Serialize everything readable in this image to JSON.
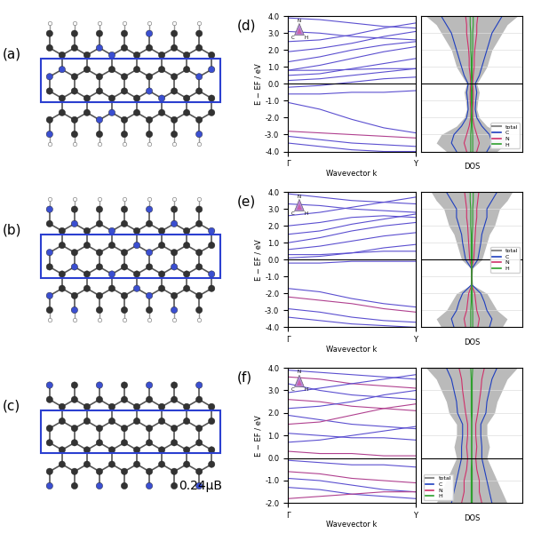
{
  "structures": [
    {
      "label": "(a)"
    },
    {
      "label": "(b)"
    },
    {
      "label": "(c)",
      "annotation": "0.24μB"
    }
  ],
  "chart_data": [
    {
      "type": "line",
      "annotation": "(d)",
      "xlabel": "Wavevector k",
      "ylabel": "E − EF / eV",
      "triangle_labels": [
        "N",
        "C",
        "H"
      ],
      "fermi_level": 0,
      "x": [
        0,
        0.25,
        0.5,
        0.75,
        1.0
      ],
      "xlim": [
        0,
        1.0
      ],
      "xticks": [
        {
          "value": 0,
          "label": "Γ"
        },
        {
          "value": 1.0,
          "label": "Y"
        }
      ],
      "ylim": [
        -4,
        4
      ],
      "yticks": [
        {
          "value": -4,
          "label": "-4.0"
        },
        {
          "value": -3,
          "label": "-3.0"
        },
        {
          "value": -2,
          "label": "-2.0"
        },
        {
          "value": -1,
          "label": "-1.0"
        },
        {
          "value": 0,
          "label": "0.0"
        },
        {
          "value": 1,
          "label": "1.0"
        },
        {
          "value": 2,
          "label": "2.0"
        },
        {
          "value": 3,
          "label": "3.0"
        },
        {
          "value": 4,
          "label": "4.0"
        }
      ],
      "series": [
        {
          "color": "#5b4fd0",
          "values": [
            3.9,
            3.8,
            3.6,
            3.4,
            3.3
          ]
        },
        {
          "color": "#5b4fd0",
          "values": [
            3.1,
            3.0,
            2.8,
            2.7,
            2.6
          ]
        },
        {
          "color": "#5b4fd0",
          "values": [
            2.5,
            2.6,
            2.9,
            3.3,
            3.6
          ]
        },
        {
          "color": "#5b4fd0",
          "values": [
            1.9,
            2.1,
            2.4,
            2.8,
            3.1
          ]
        },
        {
          "color": "#5b4fd0",
          "values": [
            1.3,
            1.6,
            2.0,
            2.3,
            2.5
          ]
        },
        {
          "color": "#5b4fd0",
          "values": [
            0.8,
            1.1,
            1.5,
            1.9,
            2.2
          ]
        },
        {
          "color": "#5b4fd0",
          "values": [
            0.8,
            0.8,
            0.85,
            0.9,
            0.9
          ]
        },
        {
          "color": "#5b4fd0",
          "values": [
            0.5,
            0.6,
            0.9,
            1.2,
            1.5
          ]
        },
        {
          "color": "#5b4fd0",
          "values": [
            0.2,
            0.3,
            0.5,
            0.7,
            0.9
          ]
        },
        {
          "color": "#5b4fd0",
          "values": [
            -0.2,
            -0.1,
            0.1,
            0.3,
            0.4
          ]
        },
        {
          "color": "#5b4fd0",
          "values": [
            -0.6,
            -0.6,
            -0.5,
            -0.5,
            -0.4
          ]
        },
        {
          "color": "#5b4fd0",
          "values": [
            -1.1,
            -1.5,
            -2.1,
            -2.6,
            -2.9
          ]
        },
        {
          "color": "#b0408f",
          "values": [
            -2.8,
            -2.9,
            -3.0,
            -3.1,
            -3.2
          ]
        },
        {
          "color": "#5b4fd0",
          "values": [
            -3.1,
            -3.3,
            -3.5,
            -3.6,
            -3.7
          ]
        },
        {
          "color": "#5b4fd0",
          "values": [
            -3.5,
            -3.7,
            -3.9,
            -4.0,
            -4.0
          ]
        }
      ]
    },
    {
      "type": "area",
      "xlabel": "DOS",
      "orientation": "horizontal",
      "tick_labels": false,
      "grid": true,
      "legend": "lower right",
      "fermi_level": 0,
      "x": [
        -4,
        -3.5,
        -3,
        -2.5,
        -2,
        -1.5,
        -1,
        -0.5,
        0,
        0.5,
        1,
        1.5,
        2,
        2.5,
        3,
        3.5,
        4
      ],
      "xlim": [
        -4,
        4
      ],
      "xticks": [
        -4,
        -3,
        -2,
        -1,
        0,
        1,
        2,
        3,
        4
      ],
      "ylim": [
        -1,
        1
      ],
      "series": [
        {
          "name": "total",
          "type": "area",
          "color": "#8c8c8c",
          "values": [
            0.5,
            0.7,
            0.6,
            0.3,
            0.15,
            0.1,
            0.12,
            0.15,
            0.1,
            0.2,
            0.3,
            0.35,
            0.4,
            0.5,
            0.6,
            0.7,
            0.9
          ]
        },
        {
          "name": "C",
          "type": "line",
          "color": "#1f3fbf",
          "values": [
            0.3,
            0.4,
            0.35,
            0.2,
            0.1,
            0.07,
            0.08,
            0.1,
            0.07,
            0.15,
            0.2,
            0.25,
            0.3,
            0.35,
            0.4,
            0.5,
            0.6
          ]
        },
        {
          "name": "N",
          "type": "line",
          "color": "#d0306a",
          "values": [
            0.1,
            0.15,
            0.1,
            0.05,
            0.02,
            0.02,
            0.03,
            0.03,
            0.02,
            0.03,
            0.05,
            0.05,
            0.06,
            0.08,
            0.1,
            0.1,
            0.12
          ]
        },
        {
          "name": "H",
          "type": "line",
          "color": "#2ca02c",
          "values": [
            0.02,
            0.02,
            0.02,
            0.01,
            0.01,
            0.0,
            0.01,
            0.01,
            0.0,
            0.01,
            0.01,
            0.01,
            0.02,
            0.02,
            0.02,
            0.03,
            0.03
          ]
        }
      ]
    },
    {
      "type": "line",
      "annotation": "(e)",
      "xlabel": "Wavevector k",
      "ylabel": "E − EF / eV",
      "triangle_labels": [
        "N",
        "C",
        "H"
      ],
      "fermi_level": 0,
      "x": [
        0,
        0.25,
        0.5,
        0.75,
        1.0
      ],
      "xlim": [
        0,
        1.0
      ],
      "xticks": [
        {
          "value": 0,
          "label": "Γ"
        },
        {
          "value": 1.0,
          "label": "Y"
        }
      ],
      "ylim": [
        -4,
        4
      ],
      "yticks": [
        {
          "value": -4,
          "label": "-4.0"
        },
        {
          "value": -3,
          "label": "-3.0"
        },
        {
          "value": -2,
          "label": "-2.0"
        },
        {
          "value": -1,
          "label": "-1.0"
        },
        {
          "value": 0,
          "label": "0.0"
        },
        {
          "value": 1,
          "label": "1.0"
        },
        {
          "value": 2,
          "label": "2.0"
        },
        {
          "value": 3,
          "label": "3.0"
        },
        {
          "value": 4,
          "label": "4.0"
        }
      ],
      "series": [
        {
          "color": "#5b4fd0",
          "values": [
            3.9,
            3.7,
            3.5,
            3.4,
            3.3
          ]
        },
        {
          "color": "#5b4fd0",
          "values": [
            3.3,
            3.2,
            3.0,
            2.9,
            2.8
          ]
        },
        {
          "color": "#5b4fd0",
          "values": [
            2.6,
            2.8,
            3.1,
            3.4,
            3.7
          ]
        },
        {
          "color": "#5b4fd0",
          "values": [
            2.0,
            2.2,
            2.5,
            2.6,
            2.5
          ]
        },
        {
          "color": "#5b4fd0",
          "values": [
            1.5,
            1.7,
            2.1,
            2.4,
            2.7
          ]
        },
        {
          "color": "#5b4fd0",
          "values": [
            1.0,
            1.3,
            1.7,
            2.0,
            2.2
          ]
        },
        {
          "color": "#5b4fd0",
          "values": [
            0.6,
            0.8,
            1.1,
            1.4,
            1.6
          ]
        },
        {
          "color": "#5b4fd0",
          "values": [
            0.3,
            0.3,
            0.4,
            0.5,
            0.5
          ]
        },
        {
          "color": "#5b4fd0",
          "values": [
            0.1,
            0.2,
            0.4,
            0.7,
            0.9
          ]
        },
        {
          "color": "#5b4fd0",
          "values": [
            -0.2,
            -0.2,
            -0.1,
            -0.1,
            -0.1
          ]
        },
        {
          "color": "#5b4fd0",
          "values": [
            -1.7,
            -1.9,
            -2.3,
            -2.6,
            -2.8
          ]
        },
        {
          "color": "#b0408f",
          "values": [
            -2.2,
            -2.4,
            -2.6,
            -2.9,
            -3.1
          ]
        },
        {
          "color": "#5b4fd0",
          "values": [
            -2.9,
            -3.1,
            -3.4,
            -3.6,
            -3.7
          ]
        },
        {
          "color": "#5b4fd0",
          "values": [
            -3.4,
            -3.6,
            -3.8,
            -3.9,
            -4.0
          ]
        }
      ]
    },
    {
      "type": "area",
      "xlabel": "DOS",
      "orientation": "horizontal",
      "tick_labels": false,
      "grid": true,
      "legend": "center right",
      "fermi_level": 0,
      "x": [
        -4,
        -3.5,
        -3,
        -2.5,
        -2,
        -1.5,
        -1,
        -0.5,
        0,
        0.5,
        1,
        1.5,
        2,
        2.5,
        3,
        3.5,
        4
      ],
      "xlim": [
        -4,
        4
      ],
      "xticks": [
        -4,
        -3,
        -2,
        -1,
        0,
        1,
        2,
        3,
        4
      ],
      "ylim": [
        -1,
        1
      ],
      "series": [
        {
          "name": "total",
          "type": "area",
          "color": "#8c8c8c",
          "values": [
            0.6,
            0.7,
            0.5,
            0.4,
            0.3,
            0.02,
            0.01,
            0.02,
            0.2,
            0.25,
            0.3,
            0.35,
            0.45,
            0.5,
            0.55,
            0.7,
            0.8
          ]
        },
        {
          "name": "C",
          "type": "line",
          "color": "#1f3fbf",
          "values": [
            0.35,
            0.4,
            0.3,
            0.25,
            0.18,
            0.01,
            0.0,
            0.01,
            0.12,
            0.15,
            0.18,
            0.2,
            0.25,
            0.3,
            0.3,
            0.4,
            0.5
          ]
        },
        {
          "name": "N",
          "type": "line",
          "color": "#d0306a",
          "values": [
            0.12,
            0.15,
            0.1,
            0.08,
            0.06,
            0.0,
            0.0,
            0.0,
            0.04,
            0.05,
            0.06,
            0.07,
            0.08,
            0.1,
            0.1,
            0.12,
            0.14
          ]
        },
        {
          "name": "H",
          "type": "line",
          "color": "#2ca02c",
          "values": [
            0.02,
            0.02,
            0.02,
            0.01,
            0.01,
            0.0,
            0.0,
            0.0,
            0.01,
            0.01,
            0.01,
            0.01,
            0.02,
            0.02,
            0.02,
            0.03,
            0.03
          ]
        }
      ]
    },
    {
      "type": "line",
      "annotation": "(f)",
      "xlabel": "Wavevector k",
      "ylabel": "E − EF / eV",
      "triangle_labels": [
        "N",
        "C",
        "H"
      ],
      "fermi_level": 0,
      "x": [
        0,
        0.25,
        0.5,
        0.75,
        1.0
      ],
      "xlim": [
        0,
        1.0
      ],
      "xticks": [
        {
          "value": 0,
          "label": "Γ"
        },
        {
          "value": 1.0,
          "label": "Y"
        }
      ],
      "ylim": [
        -2,
        4
      ],
      "yticks": [
        {
          "value": -2,
          "label": "-2.0"
        },
        {
          "value": -1,
          "label": "-1.0"
        },
        {
          "value": 0,
          "label": "0.0"
        },
        {
          "value": 1,
          "label": "1.0"
        },
        {
          "value": 2,
          "label": "2.0"
        },
        {
          "value": 3,
          "label": "3.0"
        },
        {
          "value": 4,
          "label": "4.0"
        }
      ],
      "series": [
        {
          "color": "#5b4fd0",
          "values": [
            3.9,
            3.8,
            3.7,
            3.6,
            3.5
          ]
        },
        {
          "color": "#b0408f",
          "values": [
            3.6,
            3.5,
            3.3,
            3.2,
            3.1
          ]
        },
        {
          "color": "#5b4fd0",
          "values": [
            3.3,
            3.0,
            2.8,
            2.7,
            2.6
          ]
        },
        {
          "color": "#5b4fd0",
          "values": [
            2.9,
            3.1,
            3.3,
            3.5,
            3.7
          ]
        },
        {
          "color": "#b0408f",
          "values": [
            2.6,
            2.5,
            2.3,
            2.2,
            2.1
          ]
        },
        {
          "color": "#5b4fd0",
          "values": [
            2.2,
            2.3,
            2.5,
            2.8,
            3.0
          ]
        },
        {
          "color": "#5b4fd0",
          "values": [
            1.9,
            1.7,
            1.5,
            1.4,
            1.3
          ]
        },
        {
          "color": "#b0408f",
          "values": [
            1.5,
            1.6,
            1.9,
            2.2,
            2.4
          ]
        },
        {
          "color": "#5b4fd0",
          "values": [
            1.1,
            1.0,
            0.9,
            0.9,
            0.8
          ]
        },
        {
          "color": "#5b4fd0",
          "values": [
            0.7,
            0.8,
            1.0,
            1.2,
            1.4
          ]
        },
        {
          "color": "#b0408f",
          "values": [
            0.3,
            0.2,
            0.2,
            0.1,
            0.1
          ]
        },
        {
          "color": "#5b4fd0",
          "values": [
            -0.1,
            -0.2,
            -0.3,
            -0.3,
            -0.4
          ]
        },
        {
          "color": "#b0408f",
          "values": [
            -0.6,
            -0.7,
            -0.9,
            -1.0,
            -1.1
          ]
        },
        {
          "color": "#5b4fd0",
          "values": [
            -0.9,
            -1.0,
            -1.2,
            -1.4,
            -1.5
          ]
        },
        {
          "color": "#5b4fd0",
          "values": [
            -1.3,
            -1.4,
            -1.6,
            -1.7,
            -1.8
          ]
        },
        {
          "color": "#b0408f",
          "values": [
            -1.8,
            -1.7,
            -1.6,
            -1.5,
            -1.5
          ]
        }
      ]
    },
    {
      "type": "area",
      "xlabel": "DOS",
      "orientation": "horizontal",
      "tick_labels": false,
      "grid": true,
      "legend": "lower left",
      "fermi_level": 0,
      "x": [
        -2,
        -1.5,
        -1,
        -0.5,
        0,
        0.5,
        1,
        1.5,
        2,
        2.5,
        3,
        3.5,
        4
      ],
      "xlim": [
        -2,
        4
      ],
      "xticks": [
        -2,
        -1,
        0,
        1,
        2,
        3,
        4
      ],
      "ylim": [
        -1,
        1
      ],
      "series": [
        {
          "name": "total",
          "type": "area",
          "color": "#8c8c8c",
          "values": [
            0.7,
            0.6,
            0.5,
            0.4,
            0.3,
            0.35,
            0.3,
            0.3,
            0.45,
            0.5,
            0.6,
            0.7,
            0.9
          ]
        },
        {
          "name": "C",
          "type": "line",
          "color": "#1f3fbf",
          "values": [
            0.4,
            0.35,
            0.3,
            0.25,
            0.2,
            0.2,
            0.18,
            0.18,
            0.28,
            0.3,
            0.35,
            0.4,
            0.5
          ]
        },
        {
          "name": "N",
          "type": "line",
          "color": "#d0306a",
          "values": [
            0.2,
            0.15,
            0.15,
            0.1,
            0.08,
            0.1,
            0.08,
            0.08,
            0.12,
            0.15,
            0.18,
            0.2,
            0.25
          ]
        },
        {
          "name": "H",
          "type": "line",
          "color": "#2ca02c",
          "values": [
            0.01,
            0.01,
            0.01,
            0.01,
            0.0,
            0.0,
            0.0,
            0.0,
            0.01,
            0.01,
            0.01,
            0.01,
            0.02
          ]
        }
      ]
    }
  ]
}
